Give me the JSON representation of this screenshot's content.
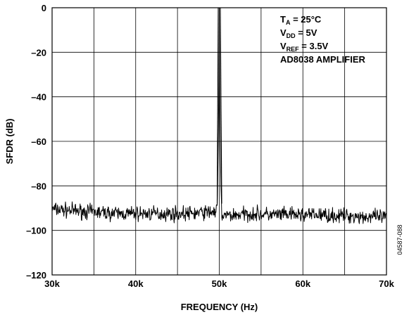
{
  "chart_data": {
    "type": "line",
    "xlabel": "FREQUENCY (Hz)",
    "ylabel": "SFDR (dB)",
    "xlim": [
      30000,
      70000
    ],
    "ylim": [
      -120,
      0
    ],
    "grid": true,
    "x_ticks": [
      {
        "value": 30000,
        "label": "30k"
      },
      {
        "value": 40000,
        "label": "40k"
      },
      {
        "value": 50000,
        "label": "50k"
      },
      {
        "value": 60000,
        "label": "60k"
      },
      {
        "value": 70000,
        "label": "70k"
      }
    ],
    "y_ticks": [
      {
        "value": 0,
        "label": "0"
      },
      {
        "value": -20,
        "label": "–20"
      },
      {
        "value": -40,
        "label": "–40"
      },
      {
        "value": -60,
        "label": "–60"
      },
      {
        "value": -80,
        "label": "–80"
      },
      {
        "value": -100,
        "label": "–100"
      },
      {
        "value": -120,
        "label": "–120"
      }
    ],
    "conditions": [
      {
        "main": "T",
        "sub": "A",
        "rest": " = 25°C"
      },
      {
        "main": "V",
        "sub": "DD",
        "rest": " = 5V"
      },
      {
        "main": "V",
        "sub": "REF",
        "rest": " = 3.5V"
      },
      {
        "main": "AD8038 AMPLIFIER",
        "sub": "",
        "rest": ""
      }
    ],
    "figure_id": "04587-088",
    "series": [
      {
        "noise_floor": [
          [
            30000,
            -90.5
          ],
          [
            32000,
            -91
          ],
          [
            34000,
            -91.5
          ],
          [
            36000,
            -92
          ],
          [
            38000,
            -92.5
          ],
          [
            40000,
            -92.5
          ],
          [
            42000,
            -92.5
          ],
          [
            44000,
            -92.5
          ],
          [
            46000,
            -92.5
          ],
          [
            48000,
            -92
          ],
          [
            49500,
            -91.5
          ],
          [
            50500,
            -93.5
          ],
          [
            52000,
            -93
          ],
          [
            54000,
            -92.5
          ],
          [
            56000,
            -93
          ],
          [
            58000,
            -93
          ],
          [
            60000,
            -93
          ],
          [
            62000,
            -93
          ],
          [
            64000,
            -93.5
          ],
          [
            66000,
            -93.5
          ],
          [
            68000,
            -94
          ],
          [
            70000,
            -94
          ]
        ],
        "peak": {
          "x": 50000,
          "y": 0,
          "half_width_hz": 400
        }
      }
    ]
  }
}
